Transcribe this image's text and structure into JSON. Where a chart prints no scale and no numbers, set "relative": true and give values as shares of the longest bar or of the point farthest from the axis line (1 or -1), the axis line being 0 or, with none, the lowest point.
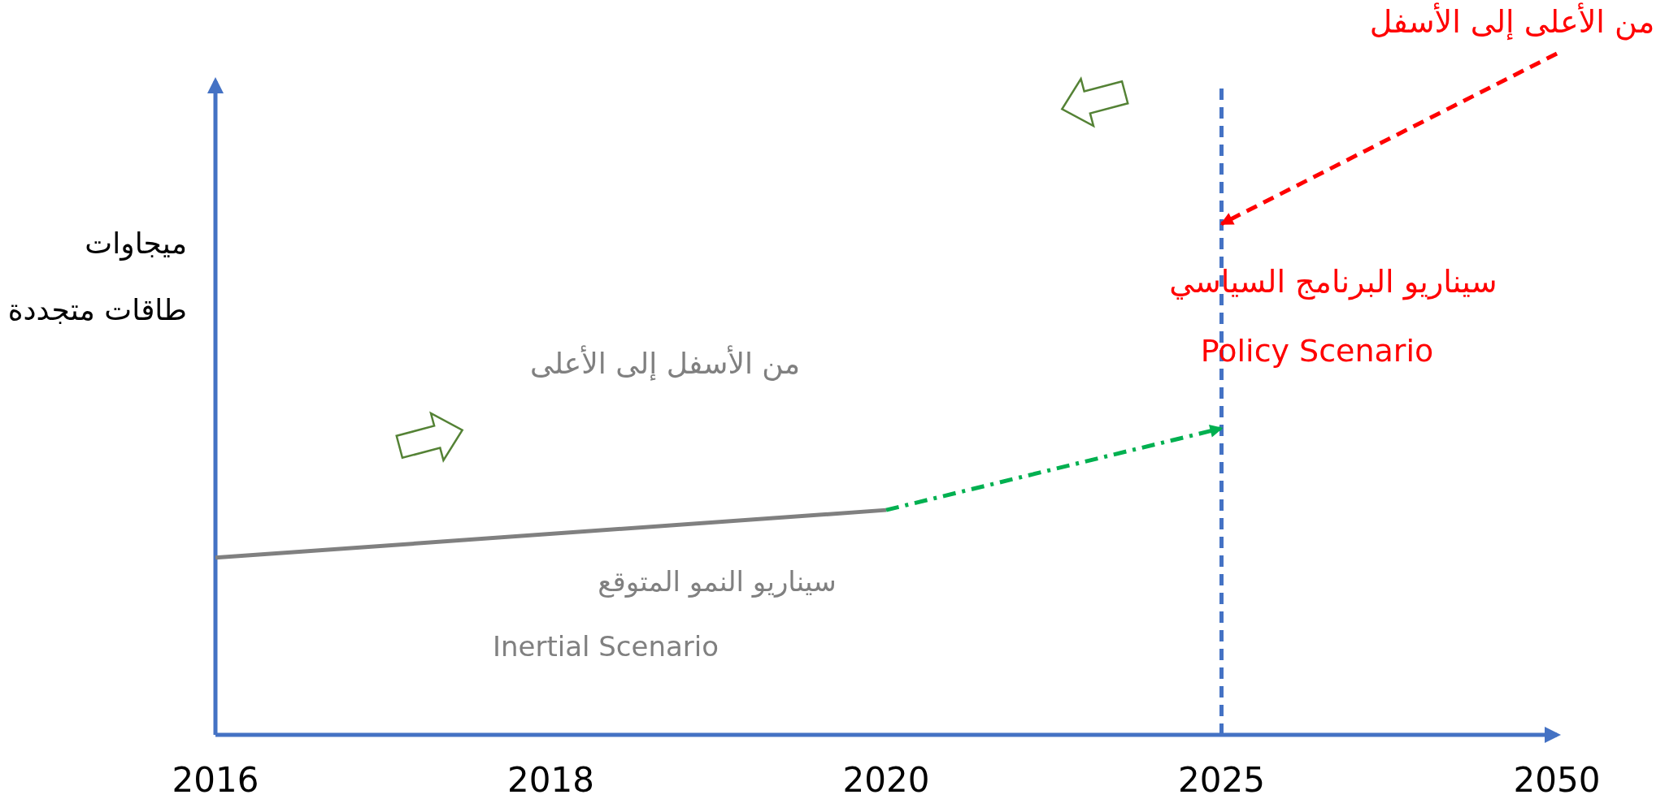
{
  "chart_data": {
    "type": "line",
    "relative": true,
    "ylabel": "ميجاوات\nطاقات متجددة",
    "categories": [
      "2016",
      "2018",
      "2020",
      "2025",
      "2050"
    ],
    "series": [
      {
        "color": "#808080",
        "line_style": "solid",
        "values": [
          0.26,
          null,
          0.33,
          null,
          null
        ]
      },
      {
        "color": "#00b050",
        "line_style": "dashdot",
        "values": [
          null,
          null,
          0.33,
          0.45,
          null
        ]
      },
      {
        "color": "#ff0000",
        "line_style": "dashed",
        "values": [
          null,
          null,
          null,
          0.75,
          1.0
        ]
      }
    ],
    "ref_lines": [
      {
        "axis": "x",
        "value": "2025",
        "color": "#4472c4",
        "line_style": "dashed"
      }
    ],
    "annotations": [
      "من الأعلى إلى الأسفل",
      "سيناريو البرنامج السياسي",
      "Policy Scenario",
      "من الأسفل إلى الأعلى",
      "سيناريو النمو المتوقع",
      "Inertial Scenario"
    ],
    "legend": false
  }
}
